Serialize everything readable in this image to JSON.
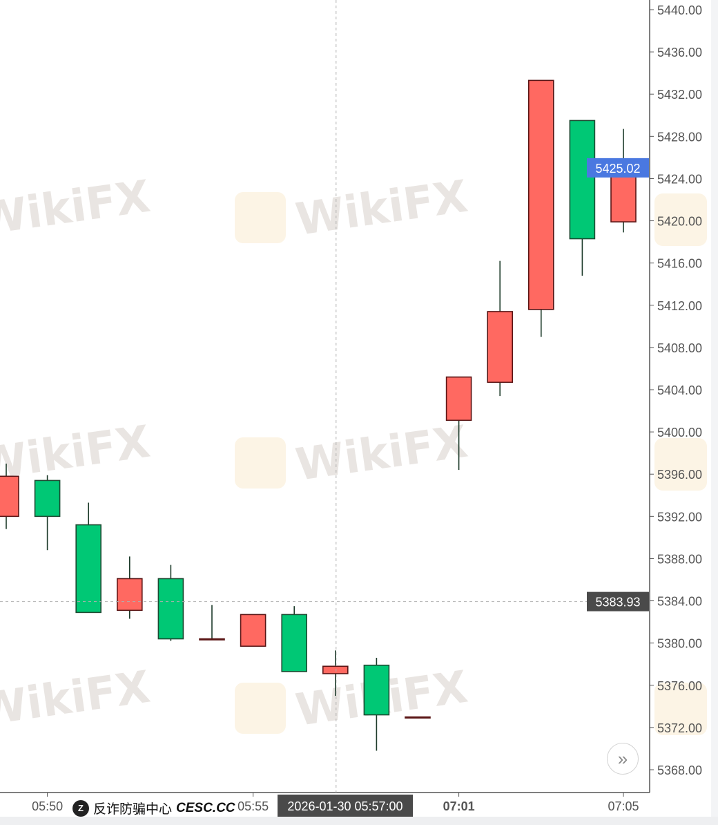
{
  "chart_data": {
    "type": "candlestick",
    "up_color": "#ff6961",
    "down_color": "#00c875",
    "ylim": [
      5366.5,
      5441
    ],
    "yticks": [
      "5368.00",
      "5372.00",
      "5376.00",
      "5380.00",
      "5384.00",
      "5388.00",
      "5392.00",
      "5396.00",
      "5400.00",
      "5404.00",
      "5408.00",
      "5412.00",
      "5416.00",
      "5420.00",
      "5424.00",
      "5428.00",
      "5432.00",
      "5436.00",
      "5440.00"
    ],
    "xtick_labels": [
      {
        "index": 1,
        "label": "05:50"
      },
      {
        "index": 6,
        "label": "05:55"
      },
      {
        "index": 11,
        "label": "07:01"
      },
      {
        "index": 15,
        "label": "07:05"
      }
    ],
    "candles": [
      {
        "o": 5392.0,
        "h": 5397.0,
        "l": 5390.8,
        "c": 5395.8
      },
      {
        "o": 5395.4,
        "h": 5395.9,
        "l": 5388.8,
        "c": 5392.0
      },
      {
        "o": 5391.2,
        "h": 5393.3,
        "l": 5382.9,
        "c": 5382.9
      },
      {
        "o": 5383.1,
        "h": 5388.2,
        "l": 5382.3,
        "c": 5386.1
      },
      {
        "o": 5386.1,
        "h": 5387.4,
        "l": 5380.2,
        "c": 5380.4
      },
      {
        "o": 5380.4,
        "h": 5383.6,
        "l": 5380.4,
        "c": 5380.4
      },
      {
        "o": 5379.7,
        "h": 5382.7,
        "l": 5379.7,
        "c": 5382.7
      },
      {
        "o": 5382.7,
        "h": 5383.5,
        "l": 5377.3,
        "c": 5377.3
      },
      {
        "o": 5377.1,
        "h": 5379.3,
        "l": 5375.0,
        "c": 5377.8
      },
      {
        "o": 5377.9,
        "h": 5378.6,
        "l": 5369.8,
        "c": 5373.2
      },
      {
        "o": 5373.0,
        "h": 5373.0,
        "l": 5373.0,
        "c": 5373.0
      },
      {
        "o": 5401.1,
        "h": 5405.2,
        "l": 5396.4,
        "c": 5405.2
      },
      {
        "o": 5404.7,
        "h": 5416.2,
        "l": 5403.4,
        "c": 5411.4
      },
      {
        "o": 5411.6,
        "h": 5433.3,
        "l": 5409.0,
        "c": 5433.3
      },
      {
        "o": 5429.5,
        "h": 5429.5,
        "l": 5414.8,
        "c": 5418.3
      },
      {
        "o": 5419.9,
        "h": 5428.7,
        "l": 5418.9,
        "c": 5425.02
      }
    ],
    "last_price": "5425.02",
    "last_price_color": "#4a78e0",
    "crosshair": {
      "price": "5383.93",
      "time": "2026-01-30 05:57:00",
      "index": 8
    },
    "grid": false
  },
  "watermark": {
    "text": "WikiFX",
    "badge": "反诈防骗中心",
    "badge_domain": "CESC.CC"
  },
  "controls": {
    "scroll_icon": "double-chevron-right-icon"
  }
}
